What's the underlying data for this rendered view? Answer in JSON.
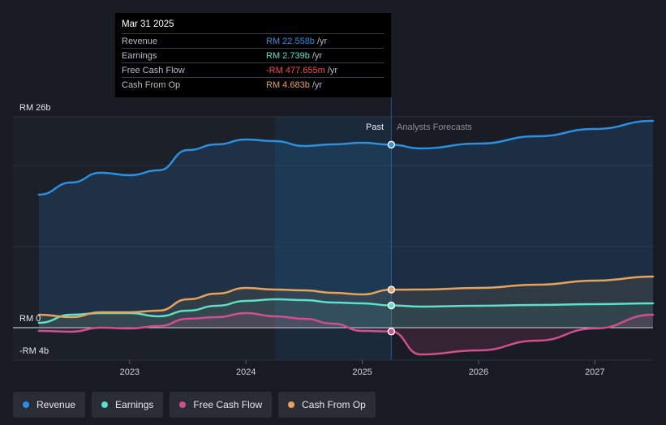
{
  "chart_data": {
    "type": "line",
    "title": "",
    "xlabel": "",
    "ylabel": "",
    "ylim": [
      -4,
      26
    ],
    "x_ticks": [
      2023,
      2024,
      2025,
      2026,
      2027
    ],
    "xlim": [
      2022.22,
      2027.5
    ],
    "y_labels": [
      {
        "value": 26,
        "label": "RM 26b"
      },
      {
        "value": 0,
        "label": "RM 0"
      },
      {
        "value": -4,
        "label": "-RM 4b"
      }
    ],
    "past_label": "Past",
    "forecast_label": "Analysts Forecasts",
    "divider_x": 2025.25,
    "highlight_start": 2024.25,
    "series": [
      {
        "name": "Revenue",
        "color": "#2d8fe0",
        "key": "revenue",
        "points": [
          [
            2022.22,
            16.4
          ],
          [
            2022.5,
            17.9
          ],
          [
            2022.75,
            19.1
          ],
          [
            2023.0,
            18.8
          ],
          [
            2023.25,
            19.4
          ],
          [
            2023.5,
            21.9
          ],
          [
            2023.75,
            22.6
          ],
          [
            2024.0,
            23.2
          ],
          [
            2024.25,
            23.0
          ],
          [
            2024.5,
            22.4
          ],
          [
            2024.75,
            22.6
          ],
          [
            2025.0,
            22.8
          ],
          [
            2025.25,
            22.558
          ],
          [
            2025.5,
            22.1
          ],
          [
            2026.0,
            22.7
          ],
          [
            2026.5,
            23.6
          ],
          [
            2027.0,
            24.5
          ],
          [
            2027.5,
            25.5
          ]
        ]
      },
      {
        "name": "Earnings",
        "color": "#5ce0c9",
        "key": "earnings",
        "points": [
          [
            2022.22,
            0.6
          ],
          [
            2022.5,
            1.6
          ],
          [
            2022.75,
            1.8
          ],
          [
            2023.0,
            1.8
          ],
          [
            2023.25,
            1.4
          ],
          [
            2023.5,
            2.1
          ],
          [
            2023.75,
            2.7
          ],
          [
            2024.0,
            3.3
          ],
          [
            2024.25,
            3.5
          ],
          [
            2024.5,
            3.4
          ],
          [
            2024.75,
            3.1
          ],
          [
            2025.0,
            3.0
          ],
          [
            2025.25,
            2.739
          ],
          [
            2025.5,
            2.6
          ],
          [
            2026.0,
            2.7
          ],
          [
            2026.5,
            2.8
          ],
          [
            2027.0,
            2.9
          ],
          [
            2027.5,
            3.0
          ]
        ]
      },
      {
        "name": "Free Cash Flow",
        "color": "#d14f8f",
        "key": "fcf",
        "points": [
          [
            2022.22,
            -0.4
          ],
          [
            2022.5,
            -0.5
          ],
          [
            2022.75,
            0.0
          ],
          [
            2023.0,
            -0.1
          ],
          [
            2023.25,
            0.2
          ],
          [
            2023.5,
            1.1
          ],
          [
            2023.75,
            1.3
          ],
          [
            2024.0,
            1.8
          ],
          [
            2024.25,
            1.4
          ],
          [
            2024.5,
            1.1
          ],
          [
            2024.75,
            0.5
          ],
          [
            2025.0,
            -0.4
          ],
          [
            2025.25,
            -0.478
          ],
          [
            2025.5,
            -3.3
          ],
          [
            2026.0,
            -2.8
          ],
          [
            2026.5,
            -1.6
          ],
          [
            2027.0,
            -0.1
          ],
          [
            2027.5,
            1.6
          ]
        ]
      },
      {
        "name": "Cash From Op",
        "color": "#e6a35c",
        "key": "cfo",
        "points": [
          [
            2022.22,
            1.6
          ],
          [
            2022.5,
            1.3
          ],
          [
            2022.75,
            1.9
          ],
          [
            2023.0,
            1.9
          ],
          [
            2023.25,
            2.1
          ],
          [
            2023.5,
            3.5
          ],
          [
            2023.75,
            4.2
          ],
          [
            2024.0,
            4.9
          ],
          [
            2024.25,
            4.7
          ],
          [
            2024.5,
            4.6
          ],
          [
            2024.75,
            4.3
          ],
          [
            2025.0,
            4.1
          ],
          [
            2025.25,
            4.683
          ],
          [
            2025.5,
            4.7
          ],
          [
            2026.0,
            4.9
          ],
          [
            2026.5,
            5.3
          ],
          [
            2027.0,
            5.8
          ],
          [
            2027.5,
            6.3
          ]
        ]
      }
    ]
  },
  "tooltip": {
    "date": "Mar 31 2025",
    "rows": [
      {
        "label": "Revenue",
        "value": "RM 22.558b",
        "unit": "/yr",
        "color": "#2d8fe0"
      },
      {
        "label": "Earnings",
        "value": "RM 2.739b",
        "unit": "/yr",
        "color": "#5ce0c9"
      },
      {
        "label": "Free Cash Flow",
        "value": "-RM 477.655m",
        "unit": "/yr",
        "color": "#ff4a4a"
      },
      {
        "label": "Cash From Op",
        "value": "RM 4.683b",
        "unit": "/yr",
        "color": "#e6a35c"
      }
    ]
  },
  "legend": [
    {
      "label": "Revenue",
      "color": "#2d8fe0"
    },
    {
      "label": "Earnings",
      "color": "#5ce0c9"
    },
    {
      "label": "Free Cash Flow",
      "color": "#d14f8f"
    },
    {
      "label": "Cash From Op",
      "color": "#e6a35c"
    }
  ]
}
